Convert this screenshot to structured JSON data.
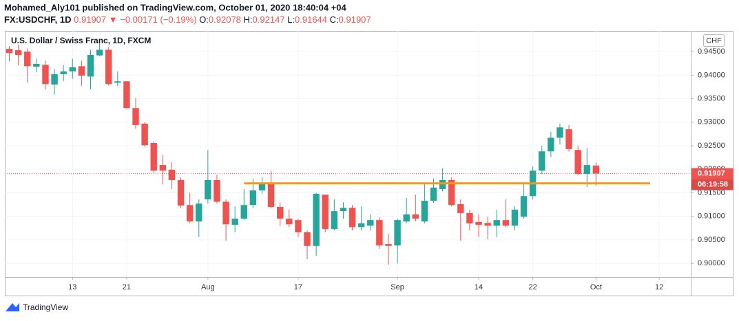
{
  "header": {
    "author_line": "Mohamed_Aly101 published on TradingView.com, October 01, 2020 18:40:04 +04",
    "symbol": "FX:USDCHF, 1D",
    "price": "0.91907",
    "change": "▼ −0.00171 (−0.19%)",
    "ohlc": [
      {
        "label": "O:",
        "value": "0.92078"
      },
      {
        "label": "H:",
        "value": "0.92147"
      },
      {
        "label": "L:",
        "value": "0.91644"
      },
      {
        "label": "C:",
        "value": "0.91907"
      }
    ]
  },
  "chart_data": {
    "type": "candlestick",
    "title": "U.S. Dollar / Swiss Franc, 1D, FXCM",
    "currency": "CHF",
    "categories": [
      null,
      null,
      null,
      null,
      null,
      null,
      null,
      "13",
      null,
      null,
      null,
      null,
      null,
      "21",
      null,
      null,
      null,
      null,
      null,
      null,
      null,
      null,
      "Aug",
      null,
      null,
      null,
      null,
      null,
      null,
      null,
      null,
      null,
      "17",
      null,
      null,
      null,
      null,
      null,
      null,
      null,
      null,
      null,
      null,
      "Sep",
      null,
      null,
      null,
      null,
      null,
      null,
      null,
      null,
      "14",
      null,
      null,
      null,
      null,
      null,
      "22",
      null,
      null,
      null,
      null,
      null,
      null,
      "Oct",
      null,
      null,
      null,
      null,
      null,
      null,
      "12",
      null,
      null,
      null
    ],
    "open": [
      0.9456,
      0.9453,
      0.945,
      0.9418,
      0.9422,
      0.938,
      0.9402,
      0.9408,
      0.9419,
      0.9397,
      0.9442,
      0.9454,
      0.9384,
      0.9387,
      0.933,
      0.9297,
      0.9256,
      0.9209,
      0.9199,
      0.9177,
      0.9124,
      0.9089,
      0.9136,
      0.9177,
      0.9131,
      0.9082,
      0.9095,
      0.9124,
      0.9155,
      0.9172,
      0.912,
      0.9095,
      0.9092,
      0.9066,
      0.9037,
      0.9146,
      0.9073,
      0.9111,
      0.9118,
      0.9077,
      0.908,
      0.9092,
      0.9041,
      0.9038,
      0.9089,
      0.9104,
      0.9089,
      0.9133,
      0.9158,
      0.9177,
      0.9126,
      0.9107,
      0.9088,
      0.9086,
      0.908,
      0.9092,
      0.908,
      0.9099,
      0.9143,
      0.9197,
      0.9238,
      0.9267,
      0.9285,
      0.9241,
      0.919,
      0.92078,
      null,
      null,
      null,
      null,
      null,
      null,
      null,
      null,
      null,
      null
    ],
    "high": [
      0.9462,
      0.9465,
      0.9457,
      0.9435,
      0.9431,
      0.9413,
      0.9421,
      0.9435,
      0.9431,
      0.9454,
      0.9472,
      0.946,
      0.9408,
      0.9387,
      0.9351,
      0.93,
      0.9259,
      0.9231,
      0.9215,
      0.9183,
      0.915,
      0.9136,
      0.9241,
      0.9188,
      0.9136,
      0.9121,
      0.9158,
      0.918,
      0.9183,
      0.9197,
      0.9129,
      0.9114,
      0.9095,
      0.907,
      0.915,
      0.9146,
      0.9136,
      0.913,
      0.9124,
      0.9121,
      0.9104,
      0.9098,
      0.9063,
      0.9095,
      0.9139,
      0.9146,
      0.9168,
      0.918,
      0.9202,
      0.9183,
      0.9136,
      0.9114,
      0.9104,
      0.9099,
      0.9114,
      0.9136,
      0.9121,
      0.9172,
      0.9206,
      0.925,
      0.9279,
      0.9297,
      0.9294,
      0.925,
      0.9245,
      0.92147,
      null,
      null,
      null,
      null,
      null,
      null,
      null,
      null,
      null,
      null
    ],
    "low": [
      0.9429,
      0.9421,
      0.9384,
      0.9406,
      0.937,
      0.9359,
      0.9387,
      0.9392,
      0.9377,
      0.937,
      0.944,
      0.9378,
      0.9377,
      0.9329,
      0.9286,
      0.9248,
      0.9193,
      0.9168,
      0.9158,
      0.9117,
      0.9085,
      0.9056,
      0.9127,
      0.9127,
      0.9048,
      0.9066,
      0.9092,
      0.9118,
      0.9148,
      0.9117,
      0.908,
      0.9077,
      0.9056,
      0.9009,
      0.9016,
      0.9066,
      0.907,
      0.9095,
      0.907,
      0.907,
      0.907,
      0.9031,
      0.8997,
      0.9,
      0.9085,
      0.9089,
      0.9085,
      0.9129,
      0.9153,
      0.9121,
      0.9048,
      0.907,
      0.9056,
      0.9051,
      0.9056,
      0.9077,
      0.907,
      0.9095,
      0.9136,
      0.919,
      0.9226,
      0.9253,
      0.9238,
      0.9187,
      0.9162,
      0.91644,
      null,
      null,
      null,
      null,
      null,
      null,
      null,
      null,
      null,
      null
    ],
    "close": [
      0.9447,
      0.9443,
      0.9419,
      0.9424,
      0.9381,
      0.9402,
      0.9408,
      0.9417,
      0.9399,
      0.9443,
      0.9454,
      0.9381,
      0.9387,
      0.933,
      0.9294,
      0.9251,
      0.9197,
      0.9197,
      0.9177,
      0.9123,
      0.9089,
      0.9127,
      0.9177,
      0.9131,
      0.9083,
      0.9095,
      0.9124,
      0.9155,
      0.9171,
      0.912,
      0.9095,
      0.9083,
      0.9066,
      0.9037,
      0.9148,
      0.9073,
      0.9111,
      0.9118,
      0.9077,
      0.9085,
      0.9092,
      0.9038,
      0.9037,
      0.9092,
      0.9104,
      0.9095,
      0.9133,
      0.9161,
      0.9177,
      0.9124,
      0.9107,
      0.9085,
      0.9082,
      0.908,
      0.9092,
      0.908,
      0.9114,
      0.9143,
      0.9197,
      0.9238,
      0.9267,
      0.9289,
      0.9243,
      0.919,
      0.9209,
      0.91907,
      null,
      null,
      null,
      null,
      null,
      null,
      null,
      null,
      null,
      null
    ],
    "up_color": "#26a69a",
    "down_color": "#ef5350",
    "ylim": [
      0.8971,
      0.9494
    ],
    "yticks": [
      {
        "value": 0.9,
        "label": "0.90000"
      },
      {
        "value": 0.905,
        "label": "0.90500"
      },
      {
        "value": 0.91,
        "label": "0.91000"
      },
      {
        "value": 0.915,
        "label": "0.91500"
      },
      {
        "value": 0.92,
        "label": "0.92000"
      },
      {
        "value": 0.925,
        "label": "0.92500"
      },
      {
        "value": 0.93,
        "label": "0.93000"
      },
      {
        "value": 0.935,
        "label": "0.93500"
      },
      {
        "value": 0.94,
        "label": "0.94000"
      },
      {
        "value": 0.945,
        "label": "0.94500"
      }
    ],
    "grid": true,
    "level": 0.917,
    "level_color": "#ff9800",
    "last_price_label": "0.91907",
    "countdown": "06:19:58"
  },
  "footer": {
    "brand": "TradingView"
  }
}
